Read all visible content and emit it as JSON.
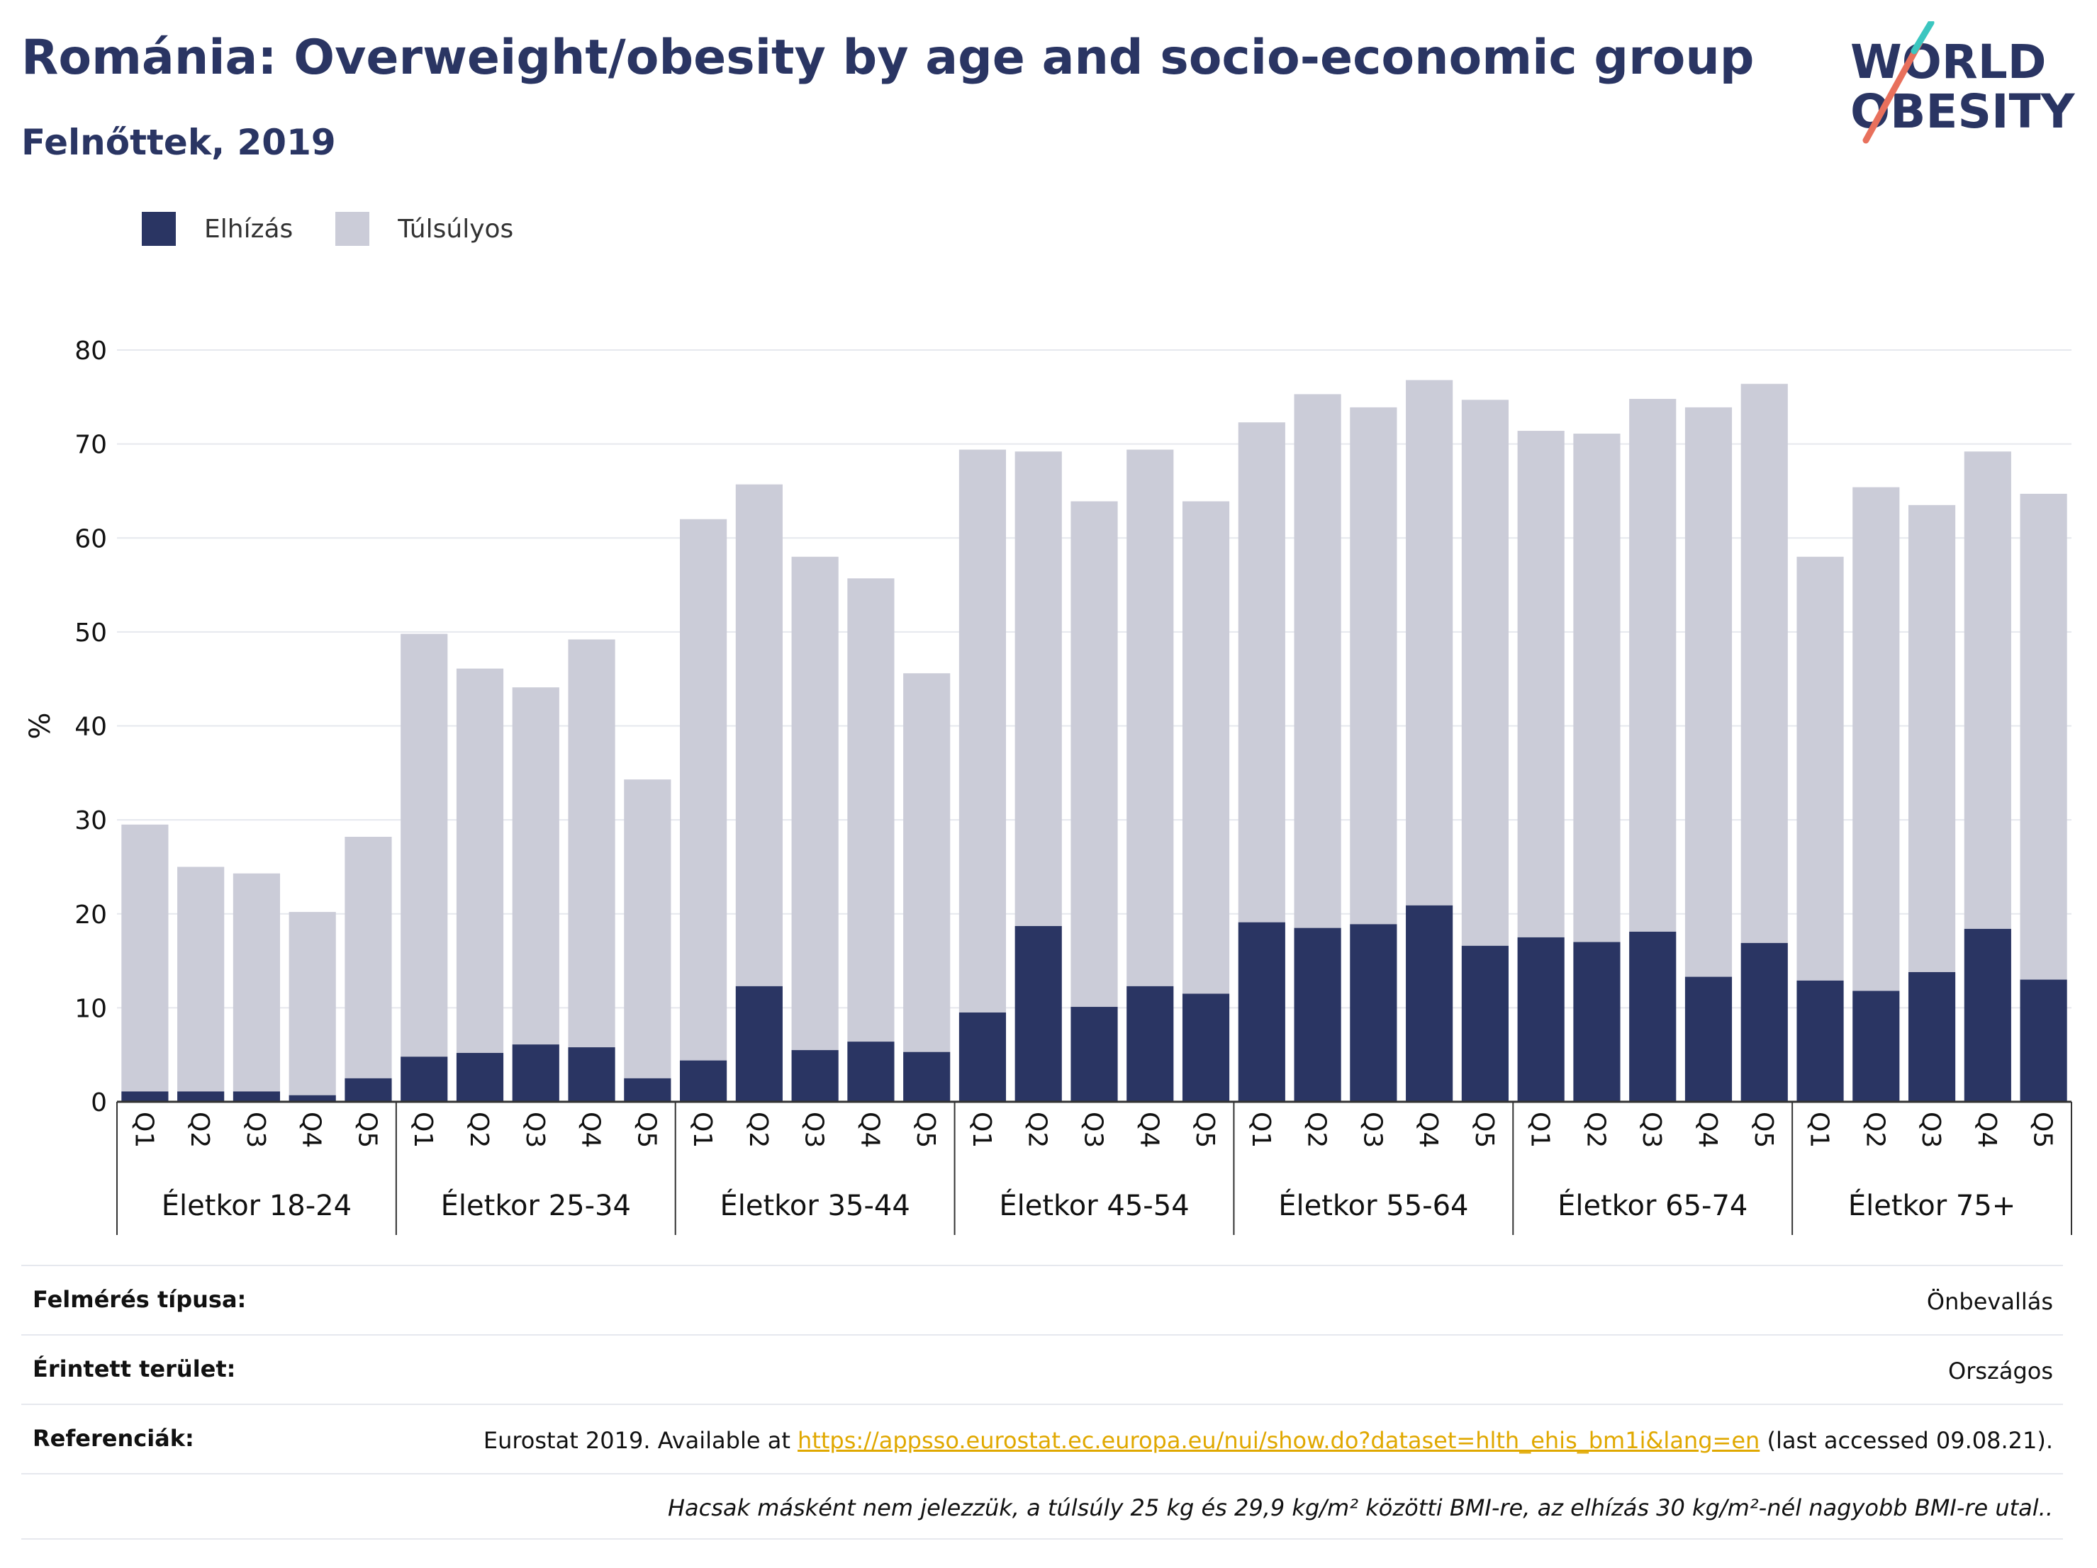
{
  "header": {
    "title": "Románia: Overweight/obesity by age and socio-economic group",
    "subtitle": "Felnőttek, 2019"
  },
  "logo": {
    "line1": "WORLD",
    "line2": "OBESITY"
  },
  "legend": [
    {
      "label": "Elhízás",
      "color": "#2a3563"
    },
    {
      "label": "Túlsúlyos",
      "color": "#cbccd8"
    }
  ],
  "chart_data": {
    "type": "bar",
    "stacked": true,
    "title": "Románia: Overweight/obesity by age and socio-economic group",
    "subtitle": "Felnőttek, 2019",
    "ylabel": "%",
    "ylim": [
      0,
      80
    ],
    "yticks": [
      0,
      10,
      20,
      30,
      40,
      50,
      60,
      70,
      80
    ],
    "grid": true,
    "legend_position": "top-left",
    "categories": [
      "Q1",
      "Q2",
      "Q3",
      "Q4",
      "Q5"
    ],
    "groups": [
      "Életkor 18-24",
      "Életkor 25-34",
      "Életkor 35-44",
      "Életkor 45-54",
      "Életkor 55-64",
      "Életkor 65-74",
      "Életkor 75+"
    ],
    "series": [
      {
        "name": "Elhízás",
        "color": "#2a3563",
        "values": [
          [
            1.1,
            1.1,
            1.1,
            0.7,
            2.5
          ],
          [
            4.8,
            5.2,
            6.1,
            5.8,
            2.5
          ],
          [
            4.4,
            12.3,
            5.5,
            6.4,
            5.3
          ],
          [
            9.5,
            18.7,
            10.1,
            12.3,
            11.5
          ],
          [
            19.1,
            18.5,
            18.9,
            20.9,
            16.6
          ],
          [
            17.5,
            17.0,
            18.1,
            13.3,
            16.9
          ],
          [
            12.9,
            11.8,
            13.8,
            18.4,
            13.0
          ]
        ]
      },
      {
        "name": "Túlsúlyos",
        "color": "#cbccd8",
        "values": [
          [
            28.4,
            23.9,
            23.2,
            19.5,
            25.7
          ],
          [
            45.0,
            40.9,
            38.0,
            43.4,
            31.8
          ],
          [
            57.6,
            53.4,
            52.5,
            49.3,
            40.3
          ],
          [
            59.9,
            50.5,
            53.8,
            57.1,
            52.4
          ],
          [
            53.2,
            56.8,
            55.0,
            55.9,
            58.1
          ],
          [
            53.9,
            54.1,
            56.7,
            60.6,
            59.5
          ],
          [
            45.1,
            53.6,
            49.7,
            50.8,
            51.7
          ]
        ]
      }
    ]
  },
  "info": {
    "survey_label": "Felmérés típusa:",
    "survey_value": "Önbevallás",
    "area_label": "Érintett terület:",
    "area_value": "Országos",
    "ref_label": "Referenciák:",
    "ref_prefix": "Eurostat 2019. Available at ",
    "ref_link": "https://appsso.eurostat.ec.europa.eu/nui/show.do?dataset=hlth_ehis_bm1i&lang=en",
    "ref_suffix": " (last accessed 09.08.21).",
    "note": "Hacsak másként nem jelezzük, a túlsúly 25 kg és 29,9 kg/m² közötti BMI-re, az elhízás 30 kg/m²-nél nagyobb BMI-re utal.."
  }
}
